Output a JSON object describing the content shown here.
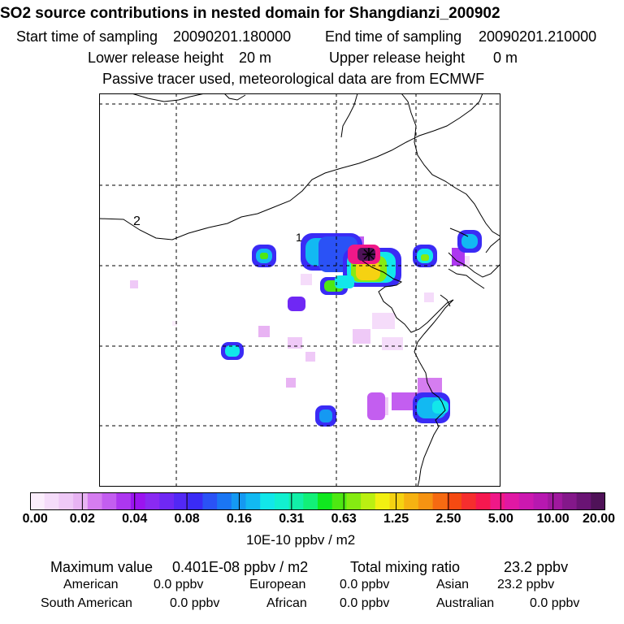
{
  "header": {
    "title": "SO2 source contributions in nested domain for Shangdianzi_200902",
    "start_label": "Start time of sampling",
    "start_value": "20090201.180000",
    "end_label": "End time of sampling",
    "end_value": "20090201.210000",
    "lower_label": "Lower release height",
    "lower_value": "20 m",
    "upper_label": "Upper release height",
    "upper_value": "0 m",
    "note": "Passive tracer used, meteorological data are from ECMWF"
  },
  "map": {
    "label_1": "1",
    "label_2": "2",
    "station_marker": "star-marker"
  },
  "colorbar": {
    "tick_labels": [
      "0.00",
      "0.02",
      "0.04",
      "0.08",
      "0.16",
      "0.31",
      "0.63",
      "1.25",
      "2.50",
      "5.00",
      "10.00",
      "20.00"
    ],
    "units": "10E-10 ppbv / m2",
    "colors": [
      "#fbeefc",
      "#f5dcfa",
      "#efc9f7",
      "#e8b3f3",
      "#d57df0",
      "#c35ef0",
      "#ad37f0",
      "#9b14f0",
      "#8a2af2",
      "#6f28f4",
      "#5228f5",
      "#3a2bf5",
      "#2a52f6",
      "#1a76f4",
      "#1599f2",
      "#12b9f2",
      "#12e7ea",
      "#12f0d0",
      "#12f0a8",
      "#12f078",
      "#10e81f",
      "#4ee812",
      "#85eb12",
      "#bbf012",
      "#f2f012",
      "#f5d212",
      "#f5b212",
      "#f59312",
      "#f56a12",
      "#f54a12",
      "#f52e2e",
      "#f5184f",
      "#f01888",
      "#e018a4",
      "#cc18b0",
      "#b718b0",
      "#a0189e",
      "#84188a",
      "#6a1474",
      "#4f1258"
    ]
  },
  "footer": {
    "max_label": "Maximum value",
    "max_value": "0.401E-08 ppbv / m2",
    "total_label": "Total mixing ratio",
    "total_value": "23.2 ppbv",
    "american_label": "American",
    "american_value": "0.0 ppbv",
    "european_label": "European",
    "european_value": "0.0 ppbv",
    "asian_label": "Asian",
    "asian_value": "23.2 ppbv",
    "south_american_label": "South American",
    "south_american_value": "0.0 ppbv",
    "african_label": "African",
    "african_value": "0.0 ppbv",
    "australian_label": "Australian",
    "australian_value": "0.0 ppbv"
  }
}
